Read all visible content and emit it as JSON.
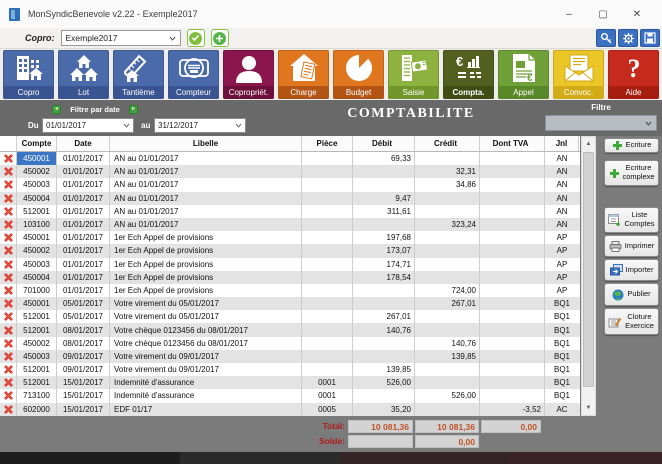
{
  "window": {
    "title": "MonSyndicBenevole v2.22 - Exemple2017",
    "minimize": "–",
    "maximize": "▢",
    "close": "✕"
  },
  "toolbar": {
    "copro_label": "Copro:",
    "copro_value": "Exemple2017"
  },
  "nav": {
    "items": [
      {
        "label": "Copro",
        "icon": "building-icon",
        "color": "#4b6aa9",
        "band": "#3a5492",
        "selected": false
      },
      {
        "label": "Lot",
        "icon": "houses-icon",
        "color": "#4b6aa9",
        "band": "#3a5492",
        "selected": false
      },
      {
        "label": "Tantième",
        "icon": "ruler-house-icon",
        "color": "#4b6aa9",
        "band": "#3a5492",
        "selected": false
      },
      {
        "label": "Compteur",
        "icon": "meter-icon",
        "color": "#4b6aa9",
        "band": "#3a5492",
        "selected": false
      },
      {
        "label": "Copropriét.",
        "icon": "person-icon",
        "color": "#8b164d",
        "band": "#6d0f3b",
        "selected": false
      },
      {
        "label": "Charge",
        "icon": "house-doc-icon",
        "color": "#e0761d",
        "band": "#b25413",
        "selected": false
      },
      {
        "label": "Budget",
        "icon": "pie-icon",
        "color": "#e0761d",
        "band": "#b25413",
        "selected": false
      },
      {
        "label": "Saisie",
        "icon": "list-money-icon",
        "color": "#8db23f",
        "band": "#71962b",
        "selected": false
      },
      {
        "label": "Compta.",
        "icon": "euro-chart-icon",
        "color": "#525f1e",
        "band": "#414c14",
        "selected": true
      },
      {
        "label": "Appel",
        "icon": "doc-euro-icon",
        "color": "#6fa138",
        "band": "#578726",
        "selected": false
      },
      {
        "label": "Convoc.",
        "icon": "envelope-icon",
        "color": "#ecc526",
        "band": "#d2ab18",
        "selected": false
      },
      {
        "label": "Aide",
        "icon": "question-icon",
        "color": "#c62a1c",
        "band": "#a71e11",
        "selected": false
      }
    ]
  },
  "filterbar": {
    "filtre_par_date": "Filtre par date",
    "du": "Du",
    "au": "au",
    "date_from": "01/01/2017",
    "date_to": "31/12/2017",
    "title": "COMPTABILITE",
    "filtre_label": "Filtre",
    "filtre_value": ""
  },
  "table": {
    "headers": [
      "Compte",
      "Date",
      "Libelle",
      "Pièce",
      "Débit",
      "Crédit",
      "Dont TVA",
      "Jnl"
    ],
    "rows": [
      {
        "compte": "450001",
        "date": "01/01/2017",
        "libelle": "AN au 01/01/2017",
        "piece": "",
        "debit": "69,33",
        "credit": "",
        "tva": "",
        "jnl": "AN",
        "selected": true
      },
      {
        "compte": "450002",
        "date": "01/01/2017",
        "libelle": "AN au 01/01/2017",
        "piece": "",
        "debit": "",
        "credit": "32,31",
        "tva": "",
        "jnl": "AN",
        "selected": false
      },
      {
        "compte": "450003",
        "date": "01/01/2017",
        "libelle": "AN au 01/01/2017",
        "piece": "",
        "debit": "",
        "credit": "34,86",
        "tva": "",
        "jnl": "AN",
        "selected": false
      },
      {
        "compte": "450004",
        "date": "01/01/2017",
        "libelle": "AN au 01/01/2017",
        "piece": "",
        "debit": "9,47",
        "credit": "",
        "tva": "",
        "jnl": "AN",
        "selected": false
      },
      {
        "compte": "512001",
        "date": "01/01/2017",
        "libelle": "AN au 01/01/2017",
        "piece": "",
        "debit": "311,61",
        "credit": "",
        "tva": "",
        "jnl": "AN",
        "selected": false
      },
      {
        "compte": "103100",
        "date": "01/01/2017",
        "libelle": "AN au 01/01/2017",
        "piece": "",
        "debit": "",
        "credit": "323,24",
        "tva": "",
        "jnl": "AN",
        "selected": false
      },
      {
        "compte": "450001",
        "date": "01/01/2017",
        "libelle": "1er Ech Appel de provisions",
        "piece": "",
        "debit": "197,68",
        "credit": "",
        "tva": "",
        "jnl": "AP",
        "selected": false
      },
      {
        "compte": "450002",
        "date": "01/01/2017",
        "libelle": "1er Ech Appel de provisions",
        "piece": "",
        "debit": "173,07",
        "credit": "",
        "tva": "",
        "jnl": "AP",
        "selected": false
      },
      {
        "compte": "450003",
        "date": "01/01/2017",
        "libelle": "1er Ech Appel de provisions",
        "piece": "",
        "debit": "174,71",
        "credit": "",
        "tva": "",
        "jnl": "AP",
        "selected": false
      },
      {
        "compte": "450004",
        "date": "01/01/2017",
        "libelle": "1er Ech Appel de provisions",
        "piece": "",
        "debit": "178,54",
        "credit": "",
        "tva": "",
        "jnl": "AP",
        "selected": false
      },
      {
        "compte": "701000",
        "date": "01/01/2017",
        "libelle": "1er Ech Appel de provisions",
        "piece": "",
        "debit": "",
        "credit": "724,00",
        "tva": "",
        "jnl": "AP",
        "selected": false
      },
      {
        "compte": "450001",
        "date": "05/01/2017",
        "libelle": "Votre virement du 05/01/2017",
        "piece": "",
        "debit": "",
        "credit": "267,01",
        "tva": "",
        "jnl": "BQ1",
        "selected": false
      },
      {
        "compte": "512001",
        "date": "05/01/2017",
        "libelle": "Votre virement du 05/01/2017",
        "piece": "",
        "debit": "267,01",
        "credit": "",
        "tva": "",
        "jnl": "BQ1",
        "selected": false
      },
      {
        "compte": "512001",
        "date": "08/01/2017",
        "libelle": "Votre chèque 0123456 du 08/01/2017",
        "piece": "",
        "debit": "140,76",
        "credit": "",
        "tva": "",
        "jnl": "BQ1",
        "selected": false
      },
      {
        "compte": "450002",
        "date": "08/01/2017",
        "libelle": "Votre chèque 0123456 du 08/01/2017",
        "piece": "",
        "debit": "",
        "credit": "140,76",
        "tva": "",
        "jnl": "BQ1",
        "selected": false
      },
      {
        "compte": "450003",
        "date": "09/01/2017",
        "libelle": "Votre virement du 09/01/2017",
        "piece": "",
        "debit": "",
        "credit": "139,85",
        "tva": "",
        "jnl": "BQ1",
        "selected": false
      },
      {
        "compte": "512001",
        "date": "09/01/2017",
        "libelle": "Votre virement du 09/01/2017",
        "piece": "",
        "debit": "139,85",
        "credit": "",
        "tva": "",
        "jnl": "BQ1",
        "selected": false
      },
      {
        "compte": "512001",
        "date": "15/01/2017",
        "libelle": "Indemnité d'assurance",
        "piece": "0001",
        "debit": "526,00",
        "credit": "",
        "tva": "",
        "jnl": "BQ1",
        "selected": false
      },
      {
        "compte": "713100",
        "date": "15/01/2017",
        "libelle": "Indemnité d'assurance",
        "piece": "0001",
        "debit": "",
        "credit": "526,00",
        "tva": "",
        "jnl": "BQ1",
        "selected": false
      },
      {
        "compte": "602000",
        "date": "15/01/2017",
        "libelle": "EDF 01/17",
        "piece": "0005",
        "debit": "35,20",
        "credit": "",
        "tva": "-3,52",
        "jnl": "AC",
        "selected": false
      }
    ]
  },
  "totals": {
    "total_label": "Total:",
    "total_debit": "10 081,36",
    "total_credit": "10 081,36",
    "total_tva": "0,00",
    "solde_label": "Solde:",
    "solde_credit": "0,00"
  },
  "sidebar": {
    "buttons": [
      {
        "label": "Ecriture",
        "icon": "plus-icon"
      },
      {
        "label": "Ecriture complexe",
        "icon": "plus-icon"
      },
      {
        "label": "Liste Comptes",
        "icon": "list-plus-icon"
      },
      {
        "label": "Imprimer",
        "icon": "printer-icon"
      },
      {
        "label": "Importer",
        "icon": "import-icon"
      },
      {
        "label": "Publier",
        "icon": "globe-icon"
      },
      {
        "label": "Cloture Exercice",
        "icon": "cloture-icon"
      }
    ]
  },
  "colors": {
    "selection_blue": "#3a76c4",
    "total_value": "#c0522a",
    "total_label_red": "#b11a1a",
    "band_gray": "#696969"
  }
}
